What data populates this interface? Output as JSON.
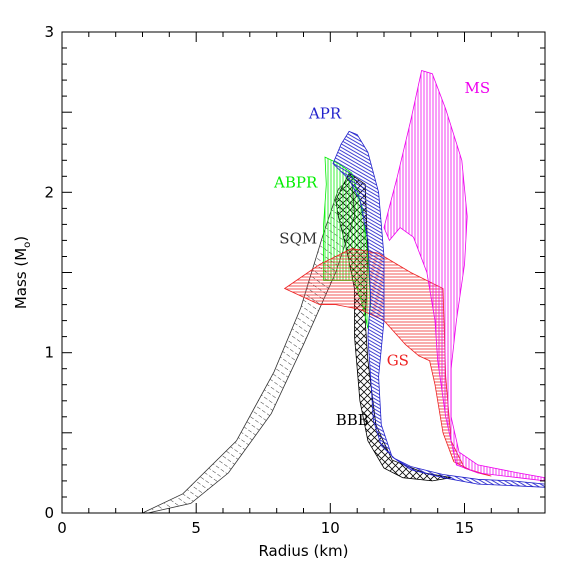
{
  "chart_data": {
    "type": "area",
    "xlabel": "Radius (km)",
    "ylabel_main": "Mass (M",
    "ylabel_sub": "o",
    "ylabel_close": ")",
    "xlim": [
      0,
      18
    ],
    "ylim": [
      0,
      3
    ],
    "x_ticks": [
      0,
      5,
      10,
      15
    ],
    "y_ticks": [
      0,
      1,
      2,
      3
    ],
    "x_tick_labels": [
      "0",
      "5",
      "10",
      "15"
    ],
    "y_tick_labels": [
      "0",
      "1",
      "2",
      "3"
    ],
    "grid": false,
    "series": [
      {
        "name": "SQM",
        "color": "#333333",
        "pattern": "diag-sqm",
        "label_pos": [
          8.1,
          1.68
        ],
        "points": [
          [
            3.0,
            0.0
          ],
          [
            4.5,
            0.12
          ],
          [
            6.5,
            0.45
          ],
          [
            7.9,
            0.88
          ],
          [
            8.9,
            1.28
          ],
          [
            9.7,
            1.72
          ],
          [
            10.3,
            2.02
          ],
          [
            10.8,
            2.1
          ],
          [
            10.9,
            1.85
          ],
          [
            10.2,
            1.5
          ],
          [
            9.0,
            1.05
          ],
          [
            7.8,
            0.62
          ],
          [
            6.2,
            0.25
          ],
          [
            4.8,
            0.06
          ],
          [
            3.2,
            0.0
          ]
        ]
      },
      {
        "name": "BBB",
        "color": "#000000",
        "pattern": "cross",
        "label_pos": [
          10.2,
          0.55
        ],
        "points": [
          [
            10.7,
            2.12
          ],
          [
            11.3,
            2.05
          ],
          [
            11.4,
            1.6
          ],
          [
            11.3,
            1.2
          ],
          [
            11.4,
            0.95
          ],
          [
            11.7,
            0.55
          ],
          [
            12.3,
            0.33
          ],
          [
            13.5,
            0.25
          ],
          [
            14.5,
            0.22
          ],
          [
            13.8,
            0.2
          ],
          [
            12.7,
            0.22
          ],
          [
            12.0,
            0.28
          ],
          [
            11.4,
            0.45
          ],
          [
            11.1,
            0.7
          ],
          [
            10.9,
            1.1
          ],
          [
            10.9,
            1.4
          ],
          [
            10.6,
            1.65
          ],
          [
            10.3,
            1.85
          ],
          [
            10.2,
            1.95
          ]
        ]
      },
      {
        "name": "ABPR",
        "color": "#00ee00",
        "pattern": "vert",
        "label_pos": [
          7.9,
          2.03
        ],
        "points": [
          [
            9.8,
            2.22
          ],
          [
            10.3,
            2.18
          ],
          [
            10.8,
            2.12
          ],
          [
            11.2,
            1.9
          ],
          [
            11.4,
            1.6
          ],
          [
            11.5,
            1.3
          ],
          [
            11.4,
            1.15
          ],
          [
            11.2,
            1.3
          ],
          [
            10.9,
            1.45
          ],
          [
            10.4,
            1.45
          ],
          [
            9.75,
            1.45
          ],
          [
            9.75,
            1.8
          ],
          [
            9.85,
            2.05
          ]
        ]
      },
      {
        "name": "GS",
        "color": "#ee2222",
        "pattern": "horiz",
        "label_pos": [
          12.1,
          0.92
        ],
        "points": [
          [
            8.3,
            1.4
          ],
          [
            9.6,
            1.55
          ],
          [
            10.8,
            1.65
          ],
          [
            11.8,
            1.62
          ],
          [
            13.0,
            1.5
          ],
          [
            14.2,
            1.4
          ],
          [
            14.3,
            0.85
          ],
          [
            14.5,
            0.45
          ],
          [
            15.0,
            0.28
          ],
          [
            15.5,
            0.25
          ],
          [
            16.0,
            0.23
          ],
          [
            15.2,
            0.27
          ],
          [
            14.6,
            0.32
          ],
          [
            14.2,
            0.5
          ],
          [
            13.9,
            0.8
          ],
          [
            13.7,
            0.95
          ],
          [
            13.3,
            0.98
          ],
          [
            12.8,
            1.05
          ],
          [
            12.0,
            1.2
          ],
          [
            11.1,
            1.27
          ],
          [
            10.2,
            1.3
          ],
          [
            9.6,
            1.3
          ]
        ]
      },
      {
        "name": "APR",
        "color": "#2222cc",
        "pattern": "diag-apr",
        "label_pos": [
          9.2,
          2.46
        ],
        "points": [
          [
            10.1,
            2.18
          ],
          [
            10.4,
            2.3
          ],
          [
            10.7,
            2.38
          ],
          [
            11.0,
            2.36
          ],
          [
            11.4,
            2.25
          ],
          [
            11.8,
            2.0
          ],
          [
            12.0,
            1.6
          ],
          [
            12.0,
            1.2
          ],
          [
            11.8,
            0.85
          ],
          [
            11.9,
            0.55
          ],
          [
            12.3,
            0.35
          ],
          [
            13.0,
            0.27
          ],
          [
            14.2,
            0.22
          ],
          [
            15.5,
            0.18
          ],
          [
            16.8,
            0.17
          ],
          [
            18.0,
            0.16
          ],
          [
            18.0,
            0.18
          ],
          [
            16.8,
            0.2
          ],
          [
            15.5,
            0.21
          ],
          [
            14.2,
            0.24
          ],
          [
            13.0,
            0.29
          ],
          [
            12.4,
            0.34
          ],
          [
            11.9,
            0.42
          ],
          [
            11.6,
            0.58
          ],
          [
            11.5,
            0.85
          ],
          [
            11.4,
            1.1
          ],
          [
            11.5,
            1.35
          ],
          [
            11.4,
            1.7
          ],
          [
            11.1,
            1.95
          ],
          [
            10.7,
            2.08
          ]
        ]
      },
      {
        "name": "MS",
        "color": "#ee00ee",
        "pattern": "vert",
        "label_pos": [
          15.0,
          2.62
        ],
        "points": [
          [
            12.0,
            1.78
          ],
          [
            12.5,
            2.1
          ],
          [
            13.0,
            2.45
          ],
          [
            13.4,
            2.76
          ],
          [
            13.8,
            2.74
          ],
          [
            14.3,
            2.52
          ],
          [
            14.9,
            2.2
          ],
          [
            15.1,
            1.85
          ],
          [
            15.0,
            1.55
          ],
          [
            14.7,
            1.2
          ],
          [
            14.5,
            0.9
          ],
          [
            14.5,
            0.6
          ],
          [
            14.8,
            0.38
          ],
          [
            15.5,
            0.3
          ],
          [
            17.0,
            0.25
          ],
          [
            18.0,
            0.22
          ],
          [
            18.0,
            0.2
          ],
          [
            17.0,
            0.22
          ],
          [
            15.5,
            0.25
          ],
          [
            14.7,
            0.3
          ],
          [
            14.3,
            0.6
          ],
          [
            14.0,
            0.95
          ],
          [
            13.9,
            1.2
          ],
          [
            13.6,
            1.5
          ],
          [
            13.1,
            1.72
          ],
          [
            12.6,
            1.78
          ],
          [
            12.2,
            1.7
          ]
        ]
      }
    ]
  }
}
